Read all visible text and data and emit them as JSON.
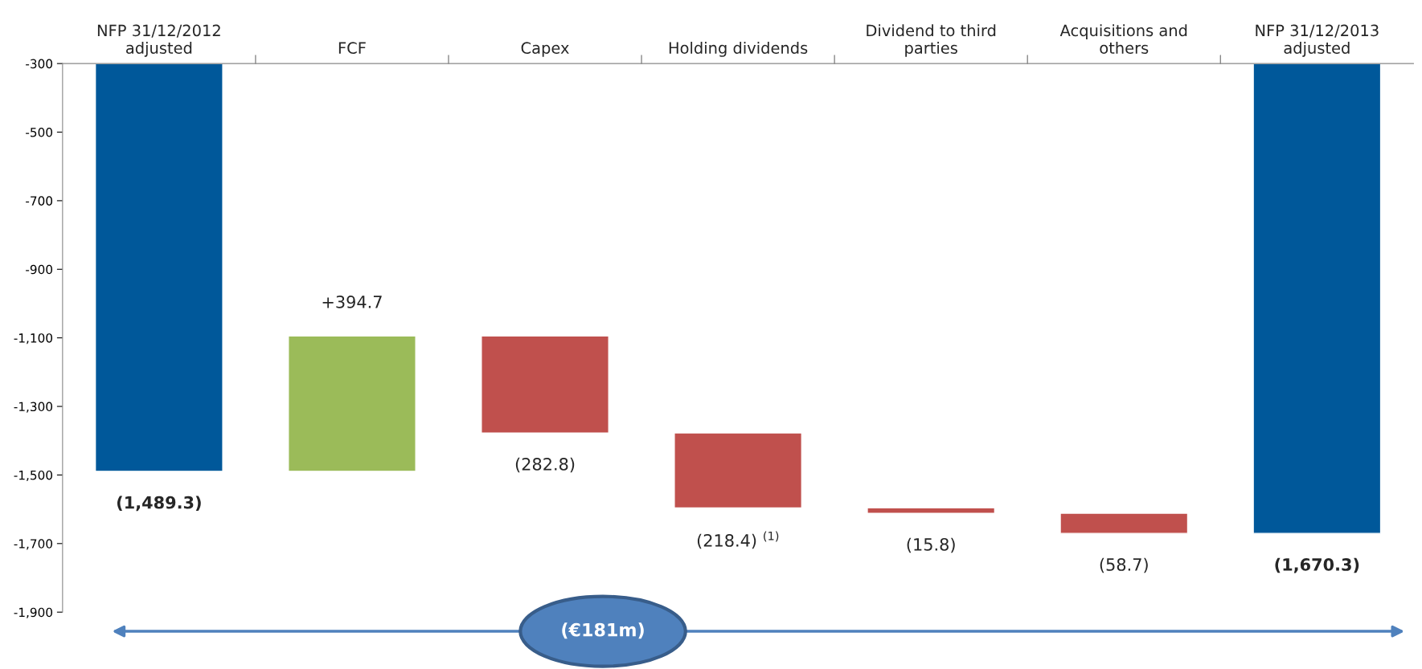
{
  "chart_data": {
    "type": "bar",
    "categories": [
      "NFP 31/12/2012\nadjusted",
      "FCF",
      "Capex",
      "Holding dividends",
      "Dividend to third\nparties",
      "Acquisitions and\nothers",
      "NFP 31/12/2013\nadjusted"
    ],
    "base": [
      -300,
      -1489.3,
      -1094.6,
      -1377.4,
      -1595.8,
      -1611.6,
      -300
    ],
    "values": [
      -1189.3,
      394.7,
      -282.8,
      -218.4,
      -15.8,
      -58.7,
      -1370.3
    ],
    "colors": [
      "#00589a",
      "#9bbb59",
      "#c0504d",
      "#c0504d",
      "#c0504d",
      "#c0504d",
      "#00589a"
    ],
    "value_labels": [
      "(1,489.3)",
      "+394.7",
      "(282.8)",
      "(218.4) $^{(1)}$",
      "(15.8)",
      "(58.7)",
      "(1,670.3)"
    ],
    "ylim": [
      -1900,
      -300
    ],
    "yticks": [
      {
        "value": -300,
        "label": "-300"
      },
      {
        "value": -500,
        "label": "-500"
      },
      {
        "value": -700,
        "label": "-700"
      },
      {
        "value": -900,
        "label": "-900"
      },
      {
        "value": -1100,
        "label": "-1,100"
      },
      {
        "value": -1300,
        "label": "-1,300"
      },
      {
        "value": -1500,
        "label": "-1,500"
      },
      {
        "value": -1700,
        "label": "-1,700"
      },
      {
        "value": -1900,
        "label": "-1,900"
      }
    ],
    "grid": false,
    "annotations": [
      "(€181m)"
    ]
  }
}
